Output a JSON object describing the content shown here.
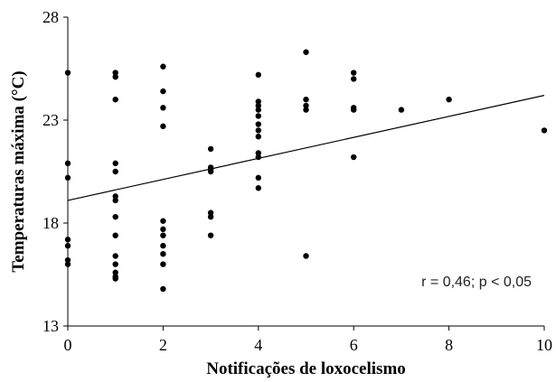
{
  "chart_data": {
    "type": "scatter",
    "xlabel": "Notificações de loxocelismo",
    "ylabel": "Temperaturas máxima (°C)",
    "xlim": [
      0,
      10
    ],
    "ylim": [
      13,
      28
    ],
    "xticks": [
      0,
      2,
      4,
      6,
      8,
      10
    ],
    "yticks": [
      13,
      18,
      23,
      28
    ],
    "grid": false,
    "annotation": "r = 0,46; p < 0,05",
    "trendline": {
      "x": [
        0,
        10
      ],
      "y": [
        19.1,
        24.2
      ]
    },
    "points": [
      {
        "x": 0,
        "y": 25.3
      },
      {
        "x": 0,
        "y": 20.9
      },
      {
        "x": 0,
        "y": 20.2
      },
      {
        "x": 0,
        "y": 17.2
      },
      {
        "x": 0,
        "y": 16.9
      },
      {
        "x": 0,
        "y": 16.2
      },
      {
        "x": 0,
        "y": 16.0
      },
      {
        "x": 1,
        "y": 25.3
      },
      {
        "x": 1,
        "y": 25.1
      },
      {
        "x": 1,
        "y": 24.0
      },
      {
        "x": 1,
        "y": 20.9
      },
      {
        "x": 1,
        "y": 20.5
      },
      {
        "x": 1,
        "y": 19.3
      },
      {
        "x": 1,
        "y": 19.1
      },
      {
        "x": 1,
        "y": 18.3
      },
      {
        "x": 1,
        "y": 17.4
      },
      {
        "x": 1,
        "y": 16.4
      },
      {
        "x": 1,
        "y": 16.0
      },
      {
        "x": 1,
        "y": 15.6
      },
      {
        "x": 1,
        "y": 15.4
      },
      {
        "x": 1,
        "y": 15.3
      },
      {
        "x": 2,
        "y": 25.6
      },
      {
        "x": 2,
        "y": 24.4
      },
      {
        "x": 2,
        "y": 23.6
      },
      {
        "x": 2,
        "y": 22.7
      },
      {
        "x": 2,
        "y": 18.1
      },
      {
        "x": 2,
        "y": 17.7
      },
      {
        "x": 2,
        "y": 17.4
      },
      {
        "x": 2,
        "y": 16.9
      },
      {
        "x": 2,
        "y": 16.5
      },
      {
        "x": 2,
        "y": 16.0
      },
      {
        "x": 2,
        "y": 14.8
      },
      {
        "x": 3,
        "y": 21.6
      },
      {
        "x": 3,
        "y": 20.7
      },
      {
        "x": 3,
        "y": 20.6
      },
      {
        "x": 3,
        "y": 20.5
      },
      {
        "x": 3,
        "y": 18.5
      },
      {
        "x": 3,
        "y": 18.3
      },
      {
        "x": 3,
        "y": 17.4
      },
      {
        "x": 4,
        "y": 25.2
      },
      {
        "x": 4,
        "y": 23.9
      },
      {
        "x": 4,
        "y": 23.7
      },
      {
        "x": 4,
        "y": 23.5
      },
      {
        "x": 4,
        "y": 23.2
      },
      {
        "x": 4,
        "y": 22.8
      },
      {
        "x": 4,
        "y": 22.5
      },
      {
        "x": 4,
        "y": 22.2
      },
      {
        "x": 4,
        "y": 21.4
      },
      {
        "x": 4,
        "y": 21.2
      },
      {
        "x": 4,
        "y": 20.2
      },
      {
        "x": 4,
        "y": 19.7
      },
      {
        "x": 5,
        "y": 26.3
      },
      {
        "x": 5,
        "y": 24.0
      },
      {
        "x": 5,
        "y": 23.7
      },
      {
        "x": 5,
        "y": 23.5
      },
      {
        "x": 5,
        "y": 16.4
      },
      {
        "x": 6,
        "y": 25.3
      },
      {
        "x": 6,
        "y": 25.0
      },
      {
        "x": 6,
        "y": 23.6
      },
      {
        "x": 6,
        "y": 23.5
      },
      {
        "x": 6,
        "y": 21.2
      },
      {
        "x": 7,
        "y": 23.5
      },
      {
        "x": 8,
        "y": 24.0
      },
      {
        "x": 10,
        "y": 22.5
      }
    ]
  }
}
